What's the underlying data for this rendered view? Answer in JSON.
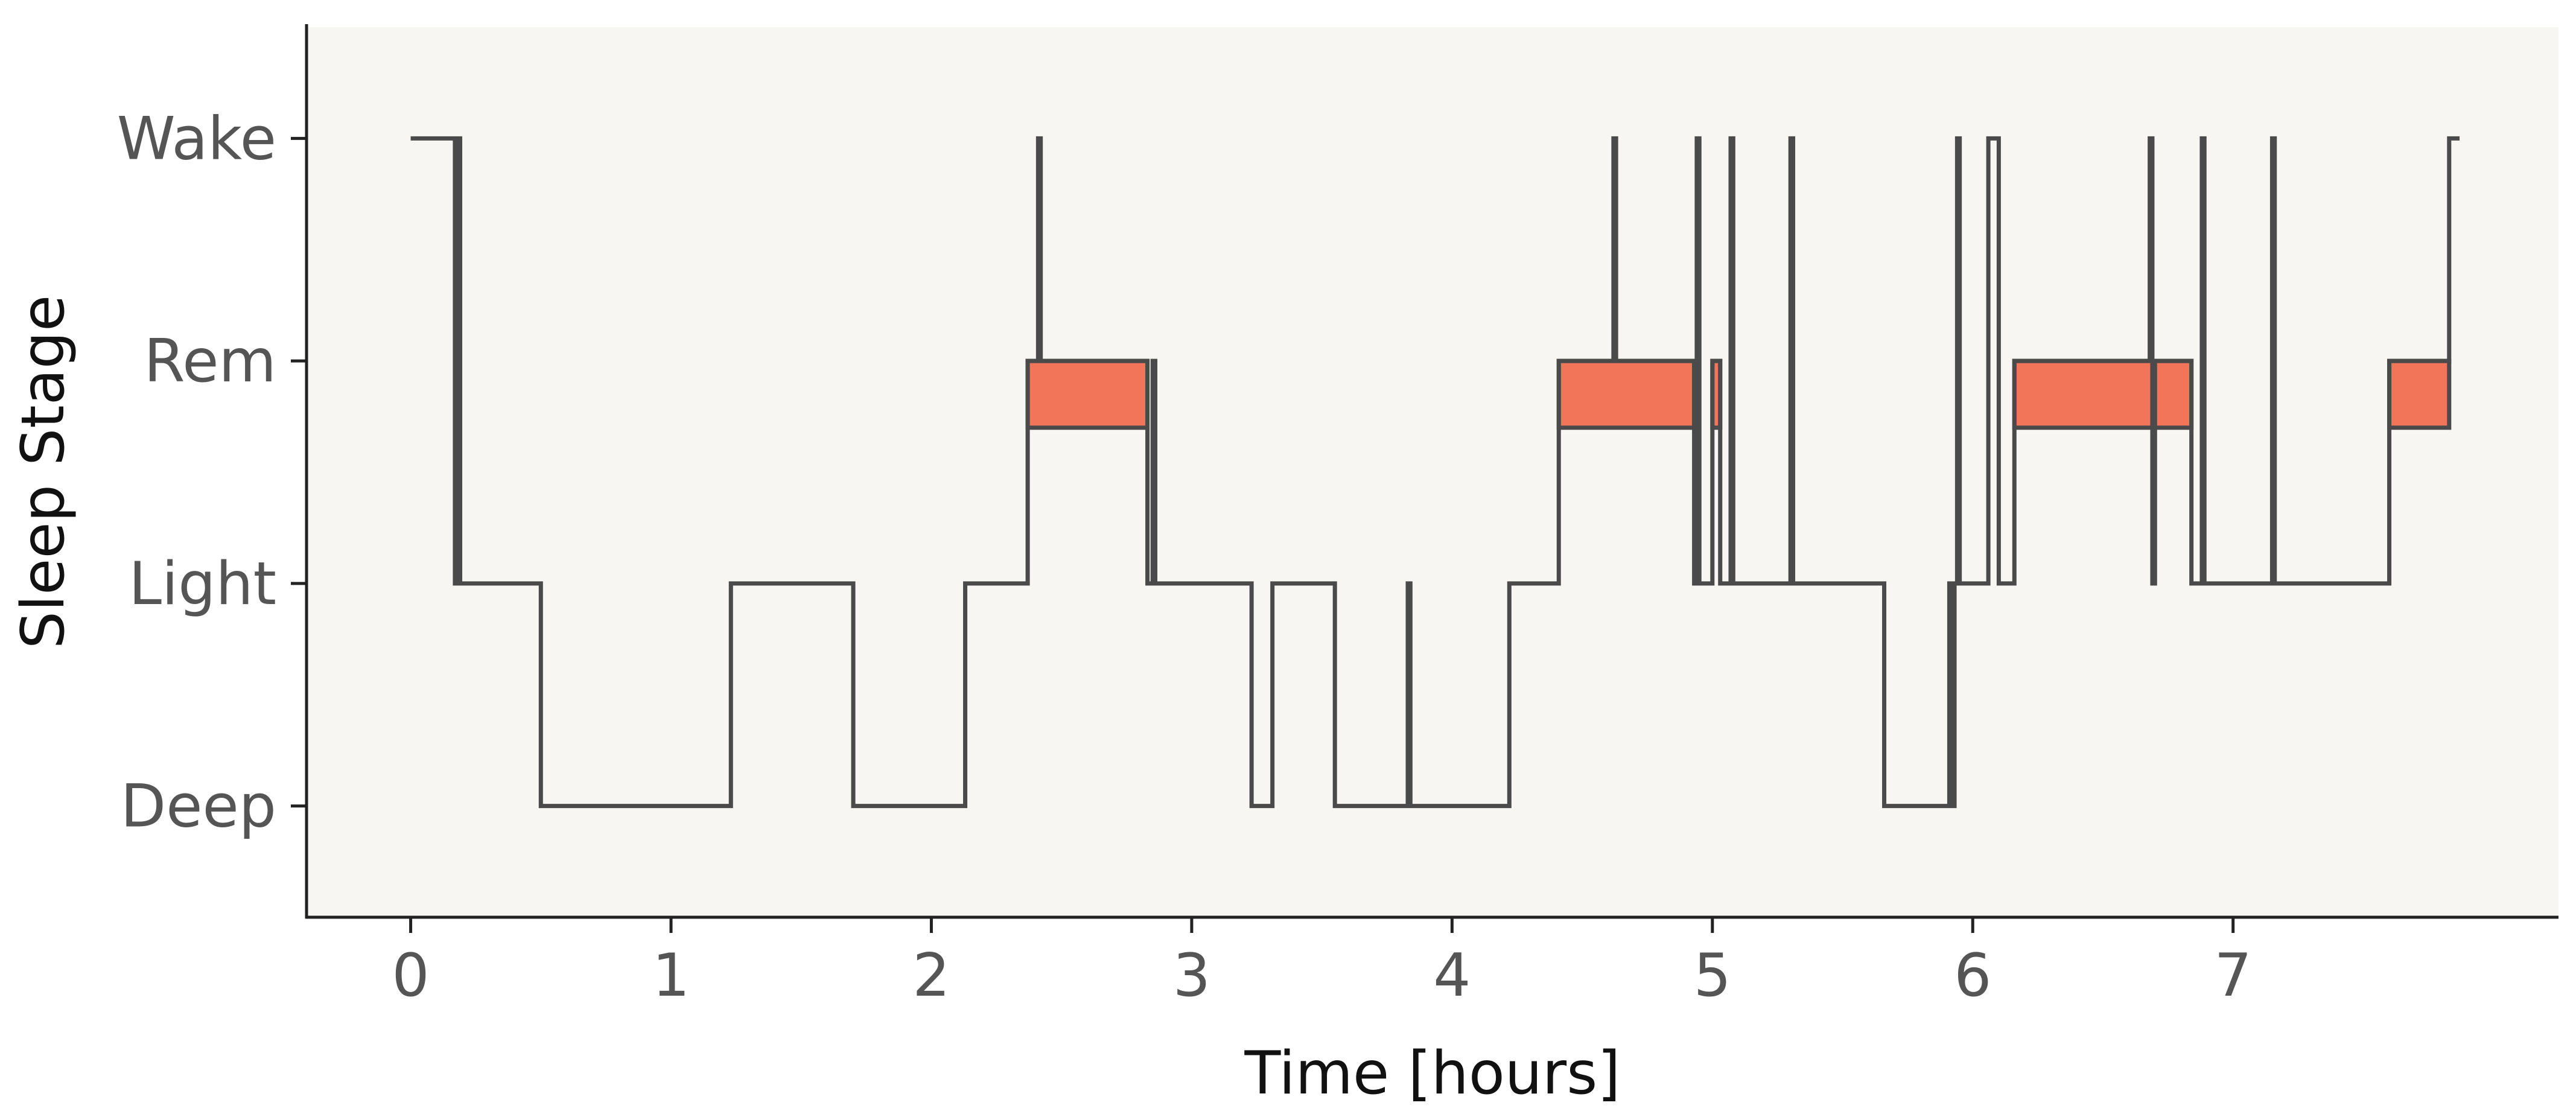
{
  "chart_data": {
    "type": "line",
    "style": "step hypnogram",
    "title": "",
    "xlabel": "Time [hours]",
    "ylabel": "Sleep Stage",
    "xlim": [
      -0.4,
      8.25
    ],
    "ylim": [
      -0.5,
      3.5
    ],
    "xticks": [
      0,
      1,
      2,
      3,
      4,
      5,
      6,
      7
    ],
    "y_categories": [
      "Deep",
      "Light",
      "Rem",
      "Wake"
    ],
    "grid": false,
    "legend": "none",
    "colors": {
      "plot_background": "#f8f6f2",
      "line": "#4a4a4a",
      "rem_fill": "#f27459",
      "axis": "#222222",
      "tick_label": "#555555"
    },
    "series": [
      {
        "line_steps": [
          [
            0.0,
            "Wake"
          ],
          [
            0.17,
            "Light"
          ],
          [
            0.18,
            "Wake"
          ],
          [
            0.19,
            "Light"
          ],
          [
            0.5,
            "Deep"
          ],
          [
            1.23,
            "Light"
          ],
          [
            1.7,
            "Deep"
          ],
          [
            2.13,
            "Light"
          ],
          [
            2.37,
            "Rem"
          ],
          [
            2.41,
            "Wake"
          ],
          [
            2.42,
            "Rem"
          ],
          [
            2.83,
            "Light"
          ],
          [
            2.85,
            "Rem"
          ],
          [
            2.86,
            "Light"
          ],
          [
            3.23,
            "Deep"
          ],
          [
            3.31,
            "Light"
          ],
          [
            3.55,
            "Deep"
          ],
          [
            3.83,
            "Light"
          ],
          [
            3.84,
            "Deep"
          ],
          [
            4.22,
            "Light"
          ],
          [
            4.41,
            "Rem"
          ],
          [
            4.62,
            "Wake"
          ],
          [
            4.63,
            "Rem"
          ],
          [
            4.93,
            "Light"
          ],
          [
            4.94,
            "Wake"
          ],
          [
            4.95,
            "Light"
          ],
          [
            5.0,
            "Rem"
          ],
          [
            5.03,
            "Light"
          ],
          [
            5.07,
            "Wake"
          ],
          [
            5.08,
            "Light"
          ],
          [
            5.3,
            "Wake"
          ],
          [
            5.31,
            "Light"
          ],
          [
            5.66,
            "Deep"
          ],
          [
            5.91,
            "Light"
          ],
          [
            5.92,
            "Deep"
          ],
          [
            5.93,
            "Light"
          ],
          [
            5.94,
            "Wake"
          ],
          [
            5.95,
            "Light"
          ],
          [
            6.06,
            "Wake"
          ],
          [
            6.1,
            "Light"
          ],
          [
            6.16,
            "Rem"
          ],
          [
            6.68,
            "Wake"
          ],
          [
            6.69,
            "Light"
          ],
          [
            6.7,
            "Rem"
          ],
          [
            6.84,
            "Light"
          ],
          [
            6.88,
            "Wake"
          ],
          [
            6.89,
            "Light"
          ],
          [
            7.15,
            "Wake"
          ],
          [
            7.16,
            "Light"
          ],
          [
            7.6,
            "Rem"
          ],
          [
            7.83,
            "Wake"
          ],
          [
            7.87,
            "Wake"
          ]
        ]
      }
    ],
    "rem_periods": [
      [
        2.37,
        2.83
      ],
      [
        4.41,
        4.93
      ],
      [
        5.0,
        5.03
      ],
      [
        6.16,
        6.84
      ],
      [
        7.6,
        7.83
      ]
    ]
  }
}
